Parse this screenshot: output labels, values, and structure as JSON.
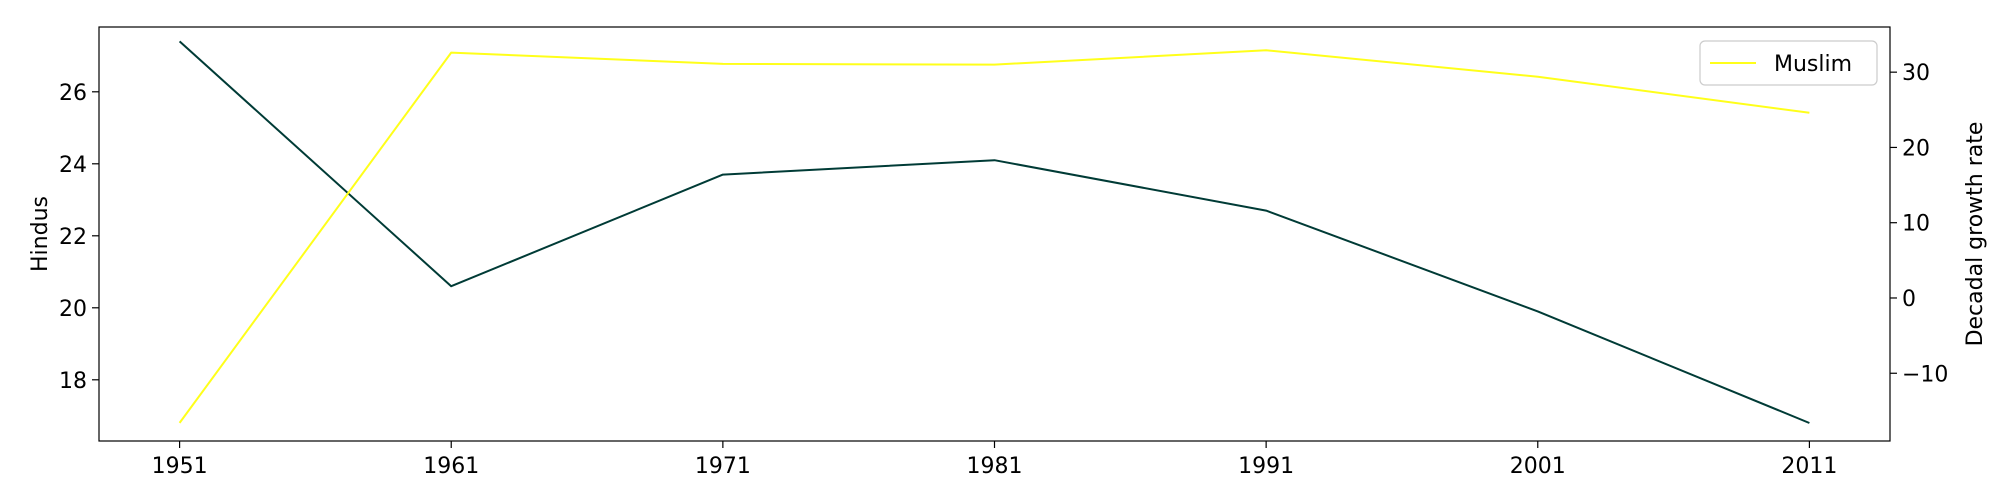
{
  "chart_data": {
    "type": "line",
    "title": "",
    "x": [
      "1951",
      "1961",
      "1971",
      "1981",
      "1991",
      "2001",
      "2011"
    ],
    "xlabel": "",
    "ylabel_left": "Hindus",
    "ylabel_right": "Decadal growth rate",
    "ylim_left": [
      16.3,
      27.8
    ],
    "ylim_right": [
      -19,
      36
    ],
    "yticks_left": [
      18,
      20,
      22,
      24,
      26
    ],
    "yticks_right": [
      -10,
      0,
      10,
      20,
      30
    ],
    "grid": false,
    "legend_position": "top-right",
    "series": [
      {
        "name": "",
        "axis": "left",
        "color": "#003b36",
        "values": [
          27.4,
          20.6,
          23.7,
          24.1,
          22.7,
          19.9,
          16.8
        ]
      },
      {
        "name": "Muslim",
        "axis": "right",
        "color": "#ffff1a",
        "values": [
          -16.6,
          32.6,
          31.1,
          31.0,
          32.9,
          29.4,
          24.6
        ]
      }
    ]
  }
}
